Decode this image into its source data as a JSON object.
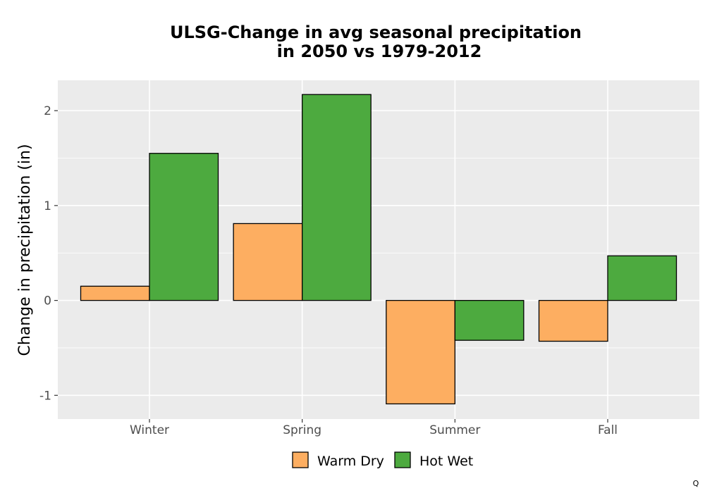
{
  "chart_data": {
    "type": "bar",
    "title_lines": [
      "ULSG-Change in avg seasonal precipitation",
      "in 2050 vs 1979-2012"
    ],
    "xlabel": "",
    "ylabel": "Change in precipitation (in)",
    "categories": [
      "Winter",
      "Spring",
      "Summer",
      "Fall"
    ],
    "series": [
      {
        "name": "Warm Dry",
        "color": "#FDAE61",
        "values": [
          0.15,
          0.81,
          -1.09,
          -0.43
        ]
      },
      {
        "name": "Hot Wet",
        "color": "#4DAA3F",
        "values": [
          1.55,
          2.17,
          -0.42,
          0.47
        ]
      }
    ],
    "ylim": [
      -1.25,
      2.32
    ],
    "yticks": [
      -1,
      0,
      1,
      2
    ],
    "ytick_labels": [
      "-1",
      "0",
      "1",
      "2"
    ],
    "grid": true,
    "legend_position": "bottom"
  },
  "corner_mark": "Q"
}
